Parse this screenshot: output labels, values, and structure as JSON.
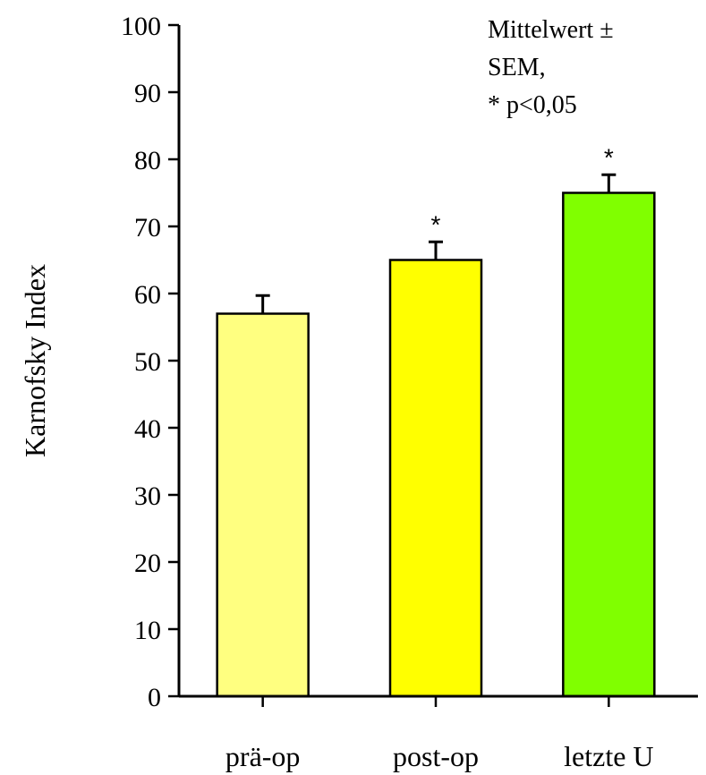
{
  "chart_data": {
    "type": "bar",
    "categories": [
      "prä-op",
      "post-op",
      "letzte U"
    ],
    "values": [
      57,
      65,
      75
    ],
    "errors": [
      2.7,
      2.7,
      2.7
    ],
    "significance": [
      "",
      "*",
      "*"
    ],
    "colors": [
      "#ffff80",
      "#ffff00",
      "#80ff00"
    ],
    "ylabel": "Karnofsky Index",
    "xlabel": "",
    "ylim": [
      0,
      100
    ],
    "yticks": [
      "0",
      "10",
      "20",
      "30",
      "40",
      "50",
      "60",
      "70",
      "80",
      "90",
      "100"
    ],
    "legend_text": [
      "Mittelwert ±",
      "SEM,",
      "* p<0,05"
    ],
    "grid": false
  }
}
